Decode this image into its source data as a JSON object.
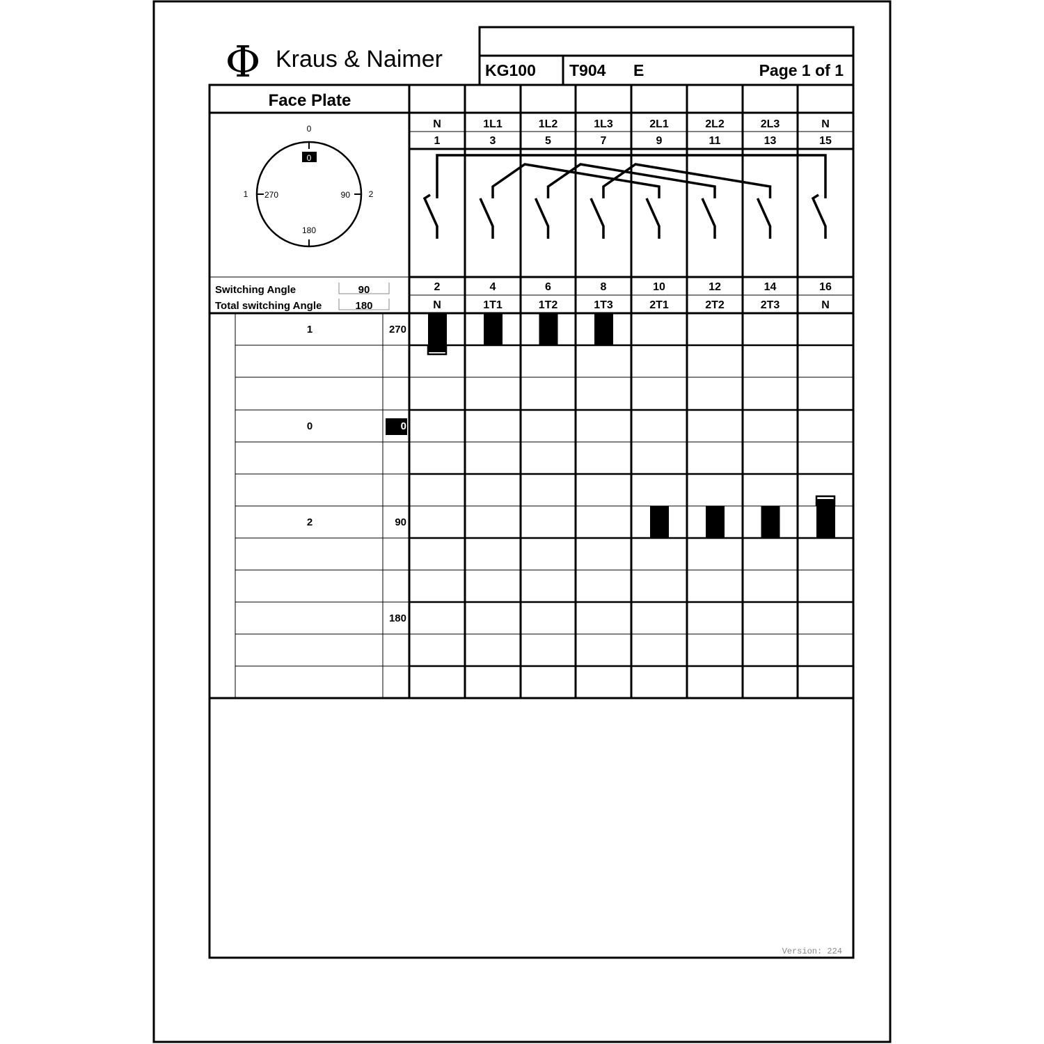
{
  "brand": {
    "logo_symbol": "Φ",
    "name": "Kraus & Naimer"
  },
  "header": {
    "title_blank": "",
    "model": "KG100",
    "program": "T904",
    "variant": "E",
    "page": "Page 1 of 1"
  },
  "face_plate": {
    "title": "Face Plate",
    "dial": {
      "top_label": "0",
      "top_marker": "0",
      "left_label": "1",
      "left_angle": "270",
      "right_angle": "90",
      "right_label": "2",
      "bottom_angle": "180"
    },
    "switching_angle_label": "Switching Angle",
    "switching_angle_value": "90",
    "total_angle_label": "Total switching Angle",
    "total_angle_value": "180"
  },
  "terminals": {
    "top_names": [
      "N",
      "1L1",
      "1L2",
      "1L3",
      "2L1",
      "2L2",
      "2L3",
      "N"
    ],
    "top_numbers": [
      "1",
      "3",
      "5",
      "7",
      "9",
      "11",
      "13",
      "15"
    ],
    "bottom_numbers": [
      "2",
      "4",
      "6",
      "8",
      "10",
      "12",
      "14",
      "16"
    ],
    "bottom_names": [
      "N",
      "1T1",
      "1T2",
      "1T3",
      "2T1",
      "2T2",
      "2T3",
      "N"
    ]
  },
  "positions": [
    {
      "label": "1",
      "angle": "270",
      "closed_contacts": [
        1,
        2,
        3,
        4
      ]
    },
    {
      "label": "0",
      "angle": "0",
      "highlighted": true,
      "closed_contacts": []
    },
    {
      "label": "2",
      "angle": "90",
      "closed_contacts": [
        5,
        6,
        7,
        8
      ]
    },
    {
      "label": "",
      "angle": "180",
      "closed_contacts": []
    }
  ],
  "footer": {
    "version": "Version: 224"
  }
}
